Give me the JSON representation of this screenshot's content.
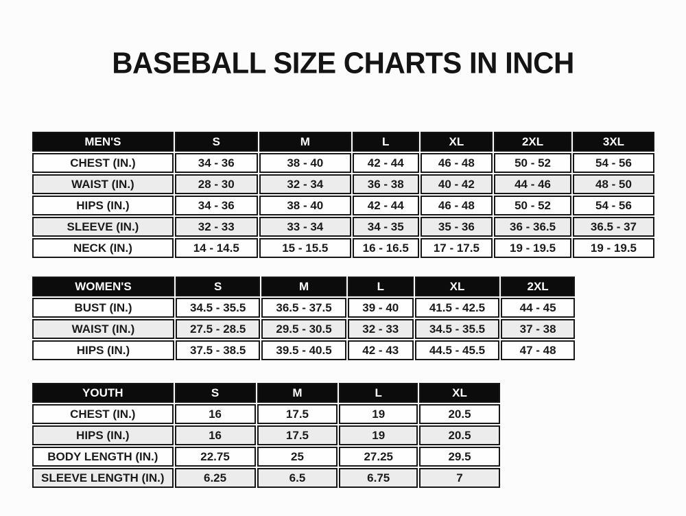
{
  "title": "BASEBALL SIZE CHARTS IN INCH",
  "colors": {
    "page_bg": "#fcfcfc",
    "header_bg": "#0c0c0c",
    "header_text": "#ffffff",
    "row_bg": "#fefefe",
    "row_alt_bg": "#ececec",
    "border": "#161616",
    "text": "#1a1a1a"
  },
  "chart_data": [
    {
      "type": "table",
      "title": "MEN'S",
      "columns": [
        "MEN'S",
        "S",
        "M",
        "L",
        "XL",
        "2XL",
        "3XL"
      ],
      "rows": [
        [
          "CHEST (IN.)",
          "34 - 36",
          "38 - 40",
          "42 - 44",
          "46 - 48",
          "50 - 52",
          "54 - 56"
        ],
        [
          "WAIST (IN.)",
          "28 - 30",
          "32 - 34",
          "36 - 38",
          "40 - 42",
          "44 - 46",
          "48 - 50"
        ],
        [
          "HIPS (IN.)",
          "34 - 36",
          "38 - 40",
          "42 - 44",
          "46 - 48",
          "50 - 52",
          "54 - 56"
        ],
        [
          "SLEEVE (IN.)",
          "32 - 33",
          "33 - 34",
          "34 - 35",
          "35 - 36",
          "36 - 36.5",
          "36.5 - 37"
        ],
        [
          "NECK (IN.)",
          "14 - 14.5",
          "15 - 15.5",
          "16 - 16.5",
          "17 - 17.5",
          "19 - 19.5",
          "19 - 19.5"
        ]
      ]
    },
    {
      "type": "table",
      "title": "WOMEN'S",
      "columns": [
        "WOMEN'S",
        "S",
        "M",
        "L",
        "XL",
        "2XL"
      ],
      "rows": [
        [
          "BUST (IN.)",
          "34.5 - 35.5",
          "36.5 - 37.5",
          "39 - 40",
          "41.5 - 42.5",
          "44 - 45"
        ],
        [
          "WAIST (IN.)",
          "27.5 - 28.5",
          "29.5 - 30.5",
          "32 - 33",
          "34.5 - 35.5",
          "37 - 38"
        ],
        [
          "HIPS (IN.)",
          "37.5 - 38.5",
          "39.5 - 40.5",
          "42 - 43",
          "44.5 - 45.5",
          "47 - 48"
        ]
      ]
    },
    {
      "type": "table",
      "title": "YOUTH",
      "columns": [
        "YOUTH",
        "S",
        "M",
        "L",
        "XL"
      ],
      "rows": [
        [
          "CHEST (IN.)",
          "16",
          "17.5",
          "19",
          "20.5"
        ],
        [
          "HIPS (IN.)",
          "16",
          "17.5",
          "19",
          "20.5"
        ],
        [
          "BODY LENGTH (IN.)",
          "22.75",
          "25",
          "27.25",
          "29.5"
        ],
        [
          "SLEEVE LENGTH (IN.)",
          "6.25",
          "6.5",
          "6.75",
          "7"
        ]
      ]
    }
  ]
}
